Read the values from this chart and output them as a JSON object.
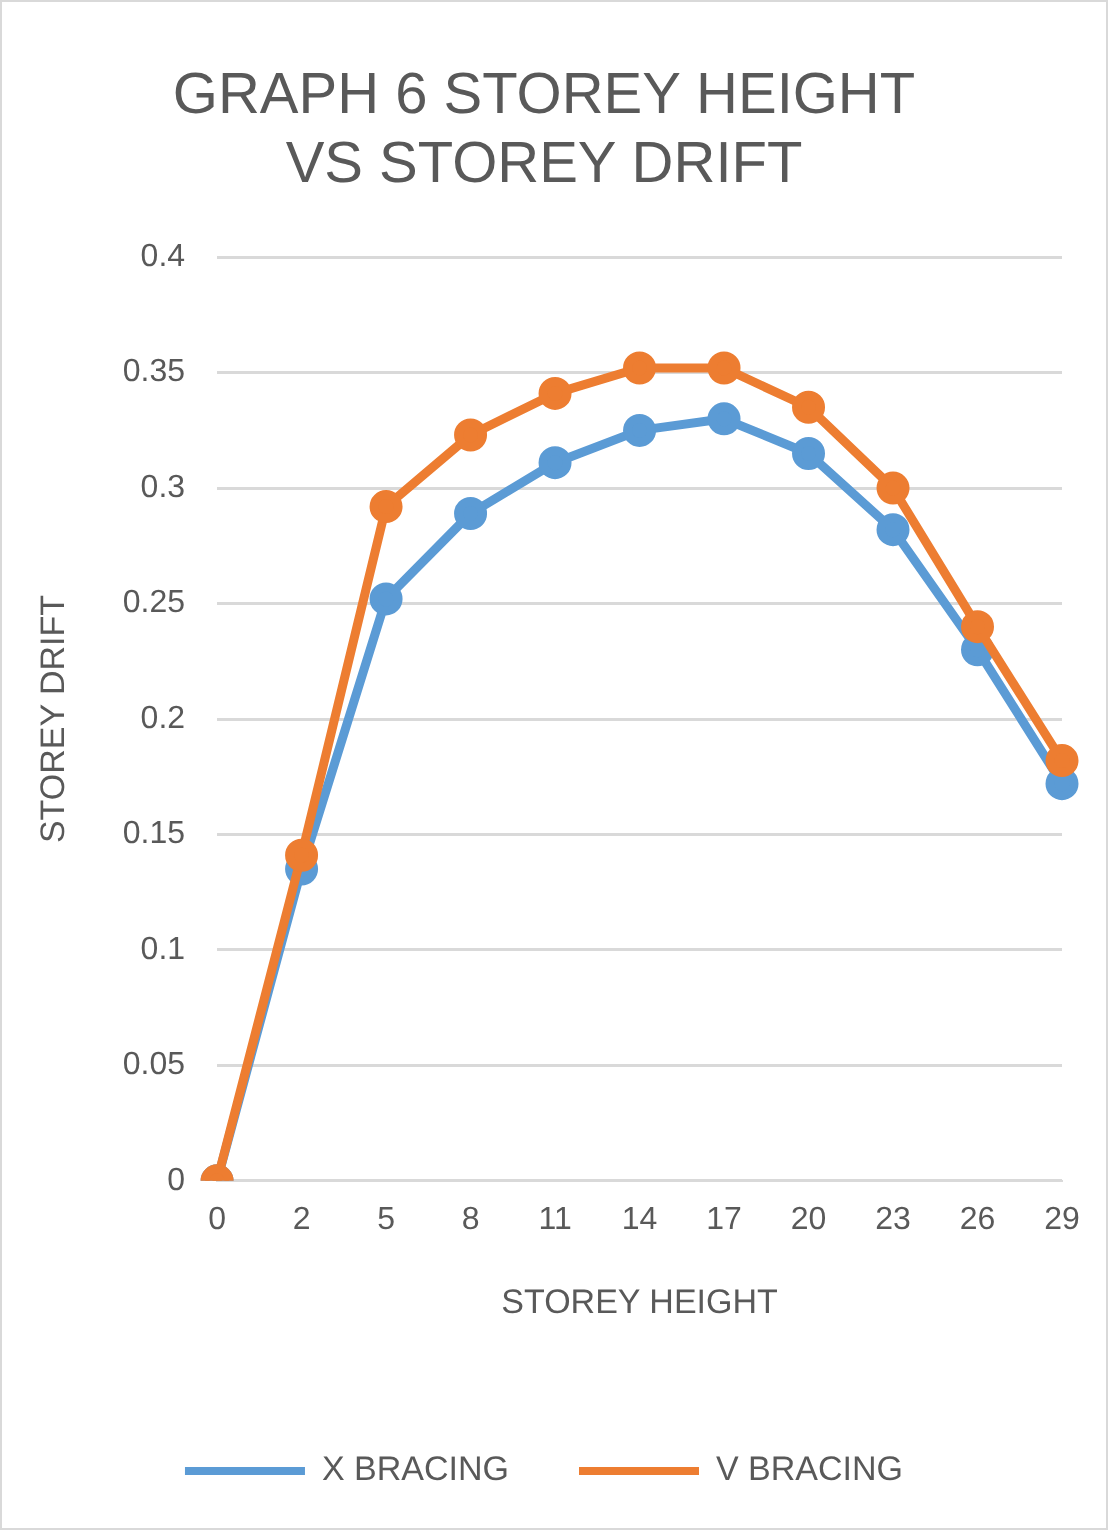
{
  "chart_data": {
    "type": "line",
    "title": [
      "GRAPH 6 STOREY HEIGHT",
      "VS STOREY DRIFT"
    ],
    "xlabel": "STOREY HEIGHT",
    "ylabel": "STOREY DRIFT",
    "categories": [
      "0",
      "2",
      "5",
      "8",
      "11",
      "14",
      "17",
      "20",
      "23",
      "26",
      "29"
    ],
    "series": [
      {
        "name": "X BRACING",
        "color": "#5b9bd5",
        "values": [
          0,
          0.135,
          0.252,
          0.289,
          0.311,
          0.325,
          0.33,
          0.315,
          0.282,
          0.23,
          0.172
        ]
      },
      {
        "name": "V BRACING",
        "color": "#ed7d31",
        "values": [
          0,
          0.141,
          0.292,
          0.323,
          0.341,
          0.352,
          0.352,
          0.335,
          0.3,
          0.24,
          0.182
        ]
      }
    ],
    "ylim": [
      0,
      0.4
    ],
    "yticks": [
      0,
      0.05,
      0.1,
      0.15,
      0.2,
      0.25,
      0.3,
      0.35,
      0.4
    ],
    "grid": "y",
    "legend": "bottom",
    "marker": "circle",
    "line_style": "solid"
  }
}
